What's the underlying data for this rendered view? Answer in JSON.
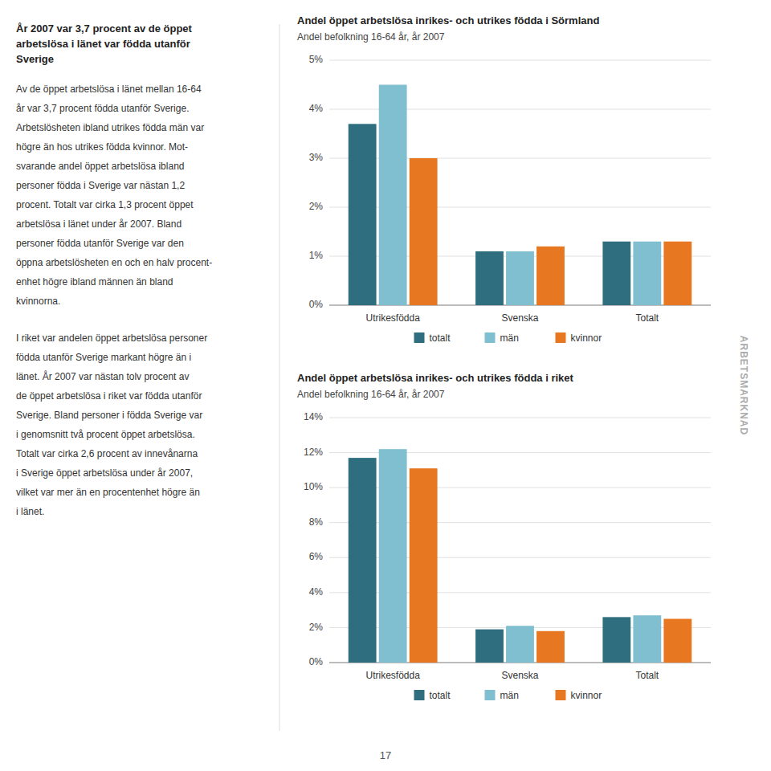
{
  "chart_data": [
    {
      "type": "bar",
      "title": "Andel öppet arbetslösa inrikes- och utrikes födda i Sörmland",
      "subtitle": "Andel befolkning 16-64 år, år 2007",
      "categories": [
        "Utrikesfödda",
        "Svenska",
        "Totalt"
      ],
      "series": [
        {
          "name": "totalt",
          "color": "#2E6E7E",
          "values": [
            3.7,
            1.1,
            1.3
          ]
        },
        {
          "name": "män",
          "color": "#7FBFCF",
          "values": [
            4.5,
            1.1,
            1.3
          ]
        },
        {
          "name": "kvinnor",
          "color": "#E87722",
          "values": [
            3.0,
            1.2,
            1.3
          ]
        }
      ],
      "ylim": [
        0,
        5
      ],
      "yticks": [
        {
          "value": 0,
          "label": "0%"
        },
        {
          "value": 1,
          "label": "1%"
        },
        {
          "value": 2,
          "label": "2%"
        },
        {
          "value": 3,
          "label": "3%"
        },
        {
          "value": 4,
          "label": "4%"
        },
        {
          "value": 5,
          "label": "5%"
        }
      ],
      "grid": true,
      "legend": "bottom"
    },
    {
      "type": "bar",
      "title": "Andel öppet arbetslösa inrikes- och utrikes födda i riket",
      "subtitle": "Andel befolkning 16-64 år, år 2007",
      "categories": [
        "Utrikesfödda",
        "Svenska",
        "Totalt"
      ],
      "series": [
        {
          "name": "totalt",
          "color": "#2E6E7E",
          "values": [
            11.7,
            1.9,
            2.6
          ]
        },
        {
          "name": "män",
          "color": "#7FBFCF",
          "values": [
            12.2,
            2.1,
            2.7
          ]
        },
        {
          "name": "kvinnor",
          "color": "#E87722",
          "values": [
            11.1,
            1.8,
            2.5
          ]
        }
      ],
      "ylim": [
        0,
        14
      ],
      "yticks": [
        {
          "value": 0,
          "label": "0%"
        },
        {
          "value": 2,
          "label": "2%"
        },
        {
          "value": 4,
          "label": "4%"
        },
        {
          "value": 6,
          "label": "6%"
        },
        {
          "value": 8,
          "label": "8%"
        },
        {
          "value": 10,
          "label": "10%"
        },
        {
          "value": 12,
          "label": "12%"
        },
        {
          "value": 14,
          "label": "14%"
        }
      ],
      "grid": true,
      "legend": "bottom"
    }
  ],
  "left_text": [
    [
      "År 2007 var 3,7 procent av de öppet",
      "arbetslösa i länet var födda utanför",
      "Sverige"
    ],
    [
      "Av de öppet arbetslösa i länet mellan 16-64",
      "år var 3,7 procent födda utanför Sverige.",
      "Arbetslösheten ibland utrikes födda män var",
      "högre än hos utrikes födda kvinnor. Mot-",
      "svarande andel öppet arbetslösa ibland",
      "personer födda i Sverige var nästan 1,2",
      "procent. Totalt var cirka 1,3 procent öppet",
      "arbetslösa i länet under år 2007. Bland",
      "personer födda utanför Sverige var den",
      "öppna arbetslösheten en och en halv procent-",
      "enhet högre ibland männen än bland",
      "kvinnorna."
    ],
    [
      "I riket var andelen öppet arbetslösa personer",
      "födda utanför Sverige markant högre än i",
      "länet. År 2007 var nästan tolv procent av",
      "de öppet arbetslösa i riket var födda utanför",
      "Sverige. Bland personer i födda Sverige var",
      "i genomsnitt två procent öppet arbetslösa.",
      "Totalt var cirka 2,6 procent av innevånarna",
      "i Sverige öppet arbetslösa under år 2007,",
      "vilket var mer än en procentenhet högre än",
      "i länet."
    ]
  ],
  "sidebar_text": "ARBETSMARKNAD",
  "page_number": "17"
}
